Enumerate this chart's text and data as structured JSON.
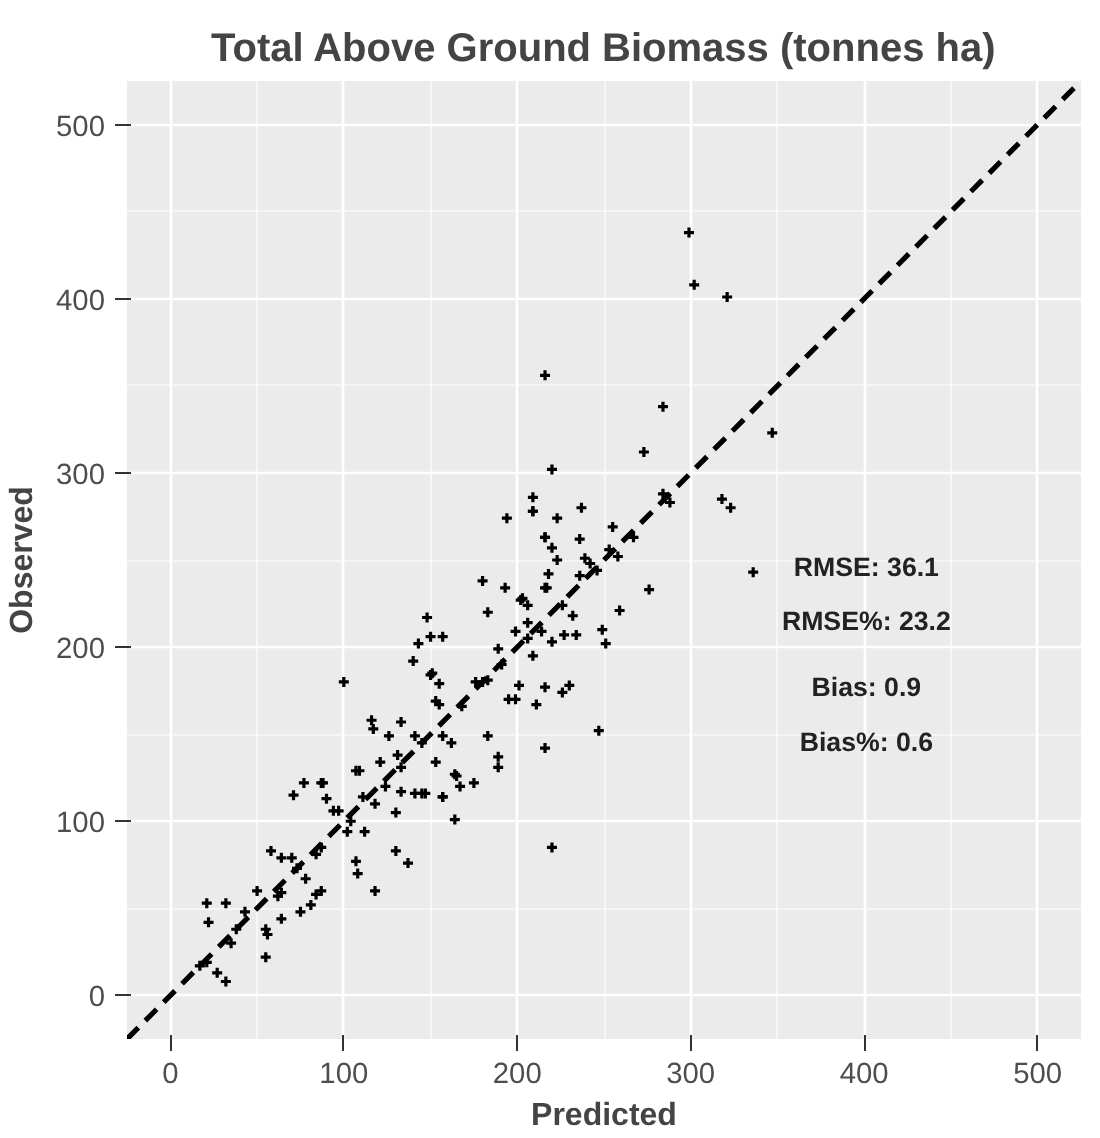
{
  "chart_data": {
    "type": "scatter",
    "title": "Total Above Ground Biomass (tonnes ha)",
    "xlabel": "Predicted",
    "ylabel": "Observed",
    "xlim": [
      -25,
      525
    ],
    "ylim": [
      -25,
      525
    ],
    "xticks": [
      0,
      100,
      200,
      300,
      400,
      500
    ],
    "yticks": [
      0,
      100,
      200,
      300,
      400,
      500
    ],
    "grid": true,
    "annotations": [
      "RMSE: 36.1",
      "RMSE%: 23.2",
      "Bias: 0.9",
      "Bias%: 0.6"
    ],
    "series": [
      {
        "color": "#000000",
        "marker": "cross",
        "x": [
          71,
          77,
          87,
          90,
          94,
          97,
          109,
          111,
          118,
          130,
          141,
          147,
          157,
          165,
          164,
          104,
          102,
          112,
          130,
          137,
          107,
          108,
          118,
          84,
          87,
          58,
          64,
          70,
          73,
          78,
          64,
          62,
          50,
          87,
          84,
          75,
          81,
          64,
          55,
          56,
          21,
          32,
          22,
          43,
          38,
          35,
          55,
          17,
          21,
          27,
          32,
          194,
          209,
          223,
          216,
          220,
          180,
          193,
          218,
          216,
          183,
          202,
          206,
          148,
          150,
          157,
          143,
          199,
          206,
          206,
          220,
          140,
          100,
          189,
          191,
          209,
          150,
          155,
          176,
          201,
          216,
          153,
          155,
          211,
          168,
          199,
          195,
          183,
          116,
          117,
          133,
          126,
          141,
          145,
          157,
          162,
          183,
          216,
          131,
          153,
          121,
          107,
          164,
          175,
          167,
          189,
          189,
          133,
          133,
          124,
          145,
          157,
          88,
          216,
          284,
          273,
          220,
          209,
          209,
          237,
          284,
          288,
          318,
          323,
          347,
          336,
          255,
          276,
          253,
          258,
          236,
          239,
          242,
          236,
          246,
          259,
          249,
          251,
          267,
          216,
          223,
          226,
          232,
          217,
          203,
          227,
          234,
          214,
          230,
          226,
          180,
          299,
          302,
          321,
          247,
          220,
          151
        ],
        "values": [
          115,
          122,
          122,
          113,
          106,
          106,
          129,
          114,
          110,
          105,
          116,
          116,
          114,
          126,
          101,
          100,
          94,
          94,
          83,
          76,
          77,
          70,
          60,
          81,
          85,
          83,
          79,
          79,
          73,
          67,
          59,
          57,
          60,
          60,
          58,
          48,
          52,
          44,
          38,
          35,
          53,
          53,
          42,
          48,
          38,
          30,
          22,
          17,
          19,
          13,
          8,
          274,
          278,
          274,
          263,
          257,
          238,
          234,
          242,
          234,
          220,
          227,
          224,
          217,
          206,
          206,
          202,
          209,
          214,
          205,
          203,
          192,
          180,
          199,
          190,
          195,
          184,
          179,
          180,
          178,
          177,
          169,
          167,
          167,
          166,
          170,
          170,
          181,
          158,
          153,
          157,
          149,
          149,
          145,
          149,
          145,
          149,
          142,
          138,
          134,
          134,
          129,
          127,
          122,
          120,
          137,
          131,
          131,
          117,
          120,
          116,
          114,
          122,
          356,
          338,
          312,
          302,
          286,
          278,
          280,
          288,
          283,
          285,
          280,
          323,
          243,
          269,
          233,
          256,
          252,
          262,
          251,
          248,
          241,
          244,
          221,
          210,
          202,
          263,
          263,
          250,
          224,
          218,
          234,
          228,
          207,
          207,
          209,
          178,
          174,
          180,
          438,
          408,
          401,
          152,
          85,
          185
        ]
      },
      {
        "type": "line",
        "color": "#000000",
        "line_style": "dashed",
        "x": [
          -25,
          525
        ],
        "values": [
          -25,
          525
        ]
      }
    ]
  }
}
